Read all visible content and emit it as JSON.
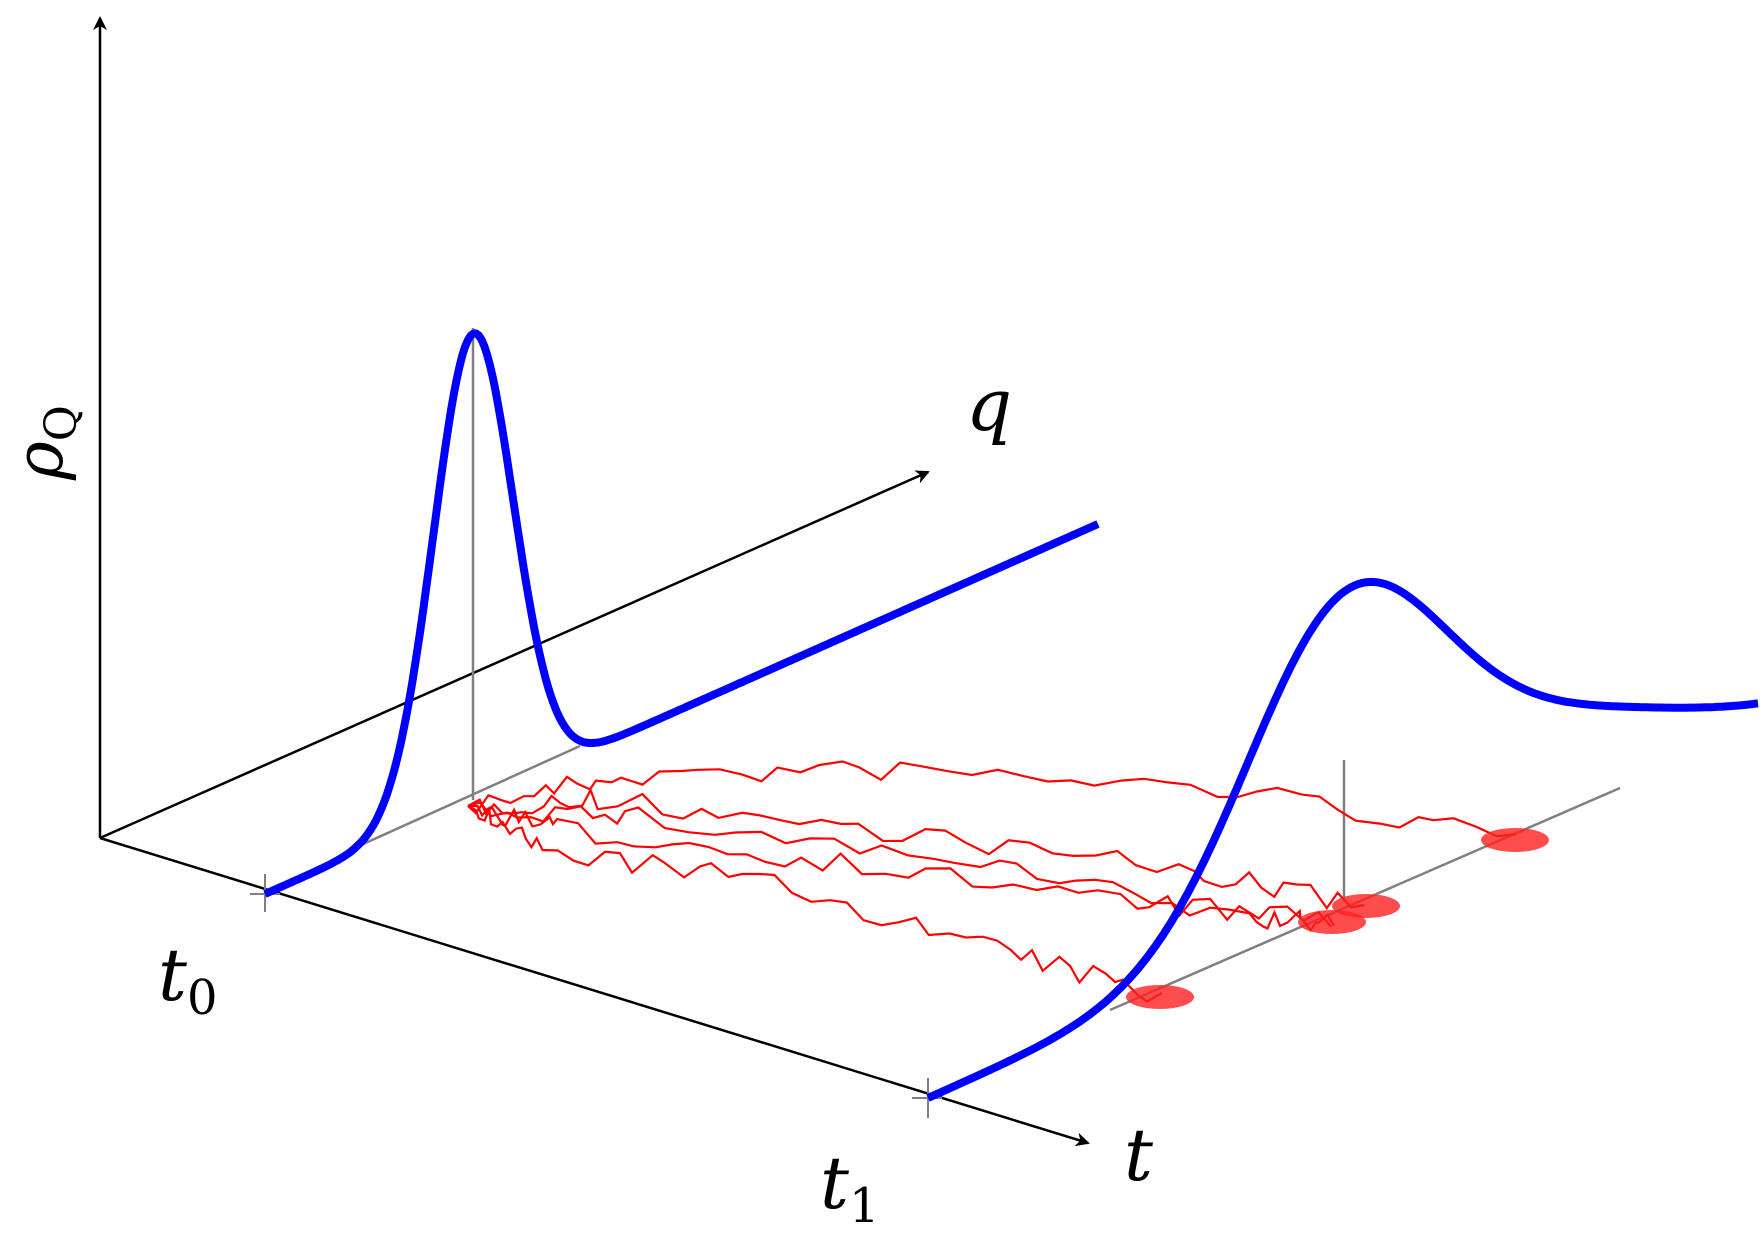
{
  "labels": {
    "vertical_axis": "ρ",
    "vertical_axis_sub": "Q",
    "q_axis": "q",
    "t_axis": "t",
    "t0": "t",
    "t0_sub": "0",
    "t1": "t",
    "t1_sub": "1"
  },
  "colors": {
    "axis": "#000000",
    "density_curve": "#0000ff",
    "trajectory": "#ff0000",
    "guide": "#808080"
  },
  "distributions": [
    {
      "name": "initial-density",
      "time": "t0",
      "shape": "narrow-peak"
    },
    {
      "name": "final-density",
      "time": "t1",
      "shape": "broad-peak"
    }
  ],
  "trajectory_count": 5,
  "endpoint_markers": 4
}
